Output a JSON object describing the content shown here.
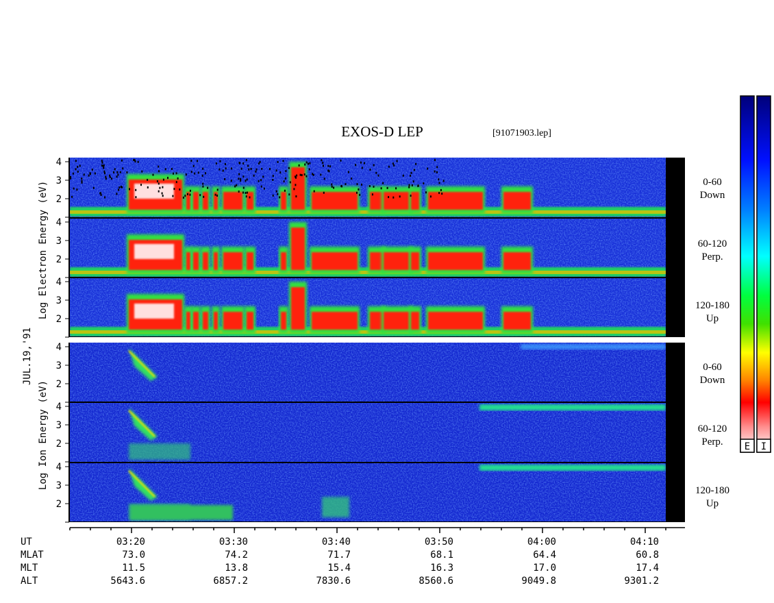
{
  "header": {
    "title": "EXOS-D LEP",
    "file": "[91071903.lep]",
    "date": "JUL.19,'91"
  },
  "chart_data": {
    "type": "heatmap",
    "title": "EXOS-D LEP",
    "x": {
      "label": "UT",
      "ticks": [
        "03:20",
        "03:30",
        "03:40",
        "03:50",
        "04:00",
        "04:10"
      ]
    },
    "y": {
      "label_electron": "Log Electron Energy (eV)",
      "label_ion": "Log Ion Energy (eV)",
      "ticks": [
        "4",
        "3",
        "2",
        ""
      ]
    },
    "panels": [
      {
        "group": "Electron",
        "label1": "0-60",
        "label2": "Down"
      },
      {
        "group": "Electron",
        "label1": "60-120",
        "label2": "Perp."
      },
      {
        "group": "Electron",
        "label1": "120-180",
        "label2": "Up"
      },
      {
        "group": "Ion",
        "label1": "0-60",
        "label2": "Down"
      },
      {
        "group": "Ion",
        "label1": "60-120",
        "label2": "Perp."
      },
      {
        "group": "Ion",
        "label1": "120-180",
        "label2": "Up"
      }
    ],
    "ephemeris": [
      {
        "name": "UT",
        "values": [
          "03:20",
          "03:30",
          "03:40",
          "03:50",
          "04:00",
          "04:10"
        ]
      },
      {
        "name": "MLAT",
        "values": [
          "73.0",
          "74.2",
          "71.7",
          "68.1",
          "64.4",
          "60.8"
        ]
      },
      {
        "name": "MLT",
        "values": [
          "11.5",
          "13.8",
          "15.4",
          "16.3",
          "17.0",
          "17.4"
        ]
      },
      {
        "name": "ALT",
        "values": [
          "5643.6",
          "6857.2",
          "7830.6",
          "8560.6",
          "9049.8",
          "9301.2"
        ]
      }
    ],
    "colorbars": [
      {
        "label": "E"
      },
      {
        "label": "I"
      }
    ],
    "colors": [
      "#ffffff",
      "#ff0000",
      "#ffff00",
      "#00ff00",
      "#00ffff",
      "#0000ff",
      "#000080"
    ]
  }
}
